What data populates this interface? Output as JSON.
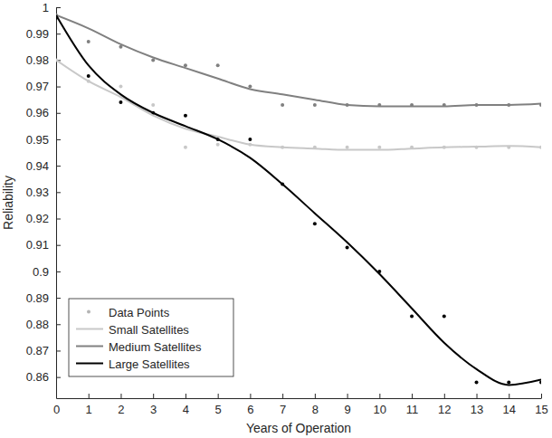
{
  "chart_data": {
    "type": "line",
    "xlabel": "Years of Operation",
    "ylabel": "Reliability",
    "x": [
      0,
      1,
      2,
      3,
      4,
      5,
      6,
      7,
      8,
      9,
      10,
      11,
      12,
      13,
      14,
      15
    ],
    "xlim": [
      0,
      15
    ],
    "xticks": [
      0,
      1,
      2,
      3,
      4,
      5,
      6,
      7,
      8,
      9,
      10,
      11,
      12,
      13,
      14,
      15
    ],
    "ylim": [
      0.852,
      1
    ],
    "yticks": [
      0.86,
      0.87,
      0.88,
      0.89,
      0.9,
      0.91,
      0.92,
      0.93,
      0.94,
      0.95,
      0.96,
      0.97,
      0.98,
      0.99,
      1
    ],
    "grid": false,
    "legend": "lower left",
    "series": [
      {
        "name": "Data Points",
        "type": "scatter",
        "marker": "circle",
        "color": "#b4b4b4",
        "x": [
          0,
          1,
          2,
          3,
          4,
          5,
          6,
          7,
          8,
          9,
          10,
          11,
          12,
          13,
          14,
          15,
          0,
          1,
          2,
          3,
          4,
          5,
          6,
          7,
          8,
          9,
          10,
          11,
          12,
          13,
          14,
          15,
          0,
          1,
          2,
          3,
          4,
          5,
          6,
          7,
          8,
          9,
          10,
          11,
          12,
          13,
          14,
          15
        ],
        "values": [
          0.98,
          0.972,
          0.97,
          0.963,
          0.947,
          0.948,
          0.948,
          0.947,
          0.947,
          0.947,
          0.947,
          0.947,
          0.947,
          0.947,
          0.947,
          0.947,
          0.997,
          0.987,
          0.985,
          0.98,
          0.978,
          0.978,
          0.97,
          0.963,
          0.963,
          0.963,
          0.963,
          0.963,
          0.963,
          0.963,
          0.963,
          0.963,
          0.996,
          0.974,
          0.964,
          0.96,
          0.959,
          0.95,
          0.95,
          0.933,
          0.918,
          0.909,
          0.9,
          0.883,
          0.883,
          0.858,
          0.858,
          0.858
        ],
        "colors": [
          "#c8c8c8",
          "#c8c8c8",
          "#c8c8c8",
          "#c8c8c8",
          "#c8c8c8",
          "#c8c8c8",
          "#c8c8c8",
          "#c8c8c8",
          "#c8c8c8",
          "#c8c8c8",
          "#c8c8c8",
          "#c8c8c8",
          "#c8c8c8",
          "#c8c8c8",
          "#c8c8c8",
          "#c8c8c8",
          "#808080",
          "#808080",
          "#808080",
          "#808080",
          "#808080",
          "#808080",
          "#808080",
          "#808080",
          "#808080",
          "#808080",
          "#808080",
          "#808080",
          "#808080",
          "#808080",
          "#808080",
          "#808080",
          "#000000",
          "#000000",
          "#000000",
          "#000000",
          "#000000",
          "#000000",
          "#000000",
          "#000000",
          "#000000",
          "#000000",
          "#000000",
          "#000000",
          "#000000",
          "#000000",
          "#000000",
          "#000000"
        ]
      },
      {
        "name": "Small Satellites",
        "type": "line",
        "line_style": "solid",
        "color": "#c8c8c8",
        "values": [
          0.98,
          0.972,
          0.966,
          0.959,
          0.954,
          0.951,
          0.948,
          0.947,
          0.9465,
          0.946,
          0.946,
          0.9465,
          0.947,
          0.9472,
          0.9475,
          0.947
        ]
      },
      {
        "name": "Medium Satellites",
        "type": "line",
        "line_style": "solid",
        "color": "#808080",
        "values": [
          0.997,
          0.992,
          0.986,
          0.981,
          0.977,
          0.973,
          0.969,
          0.967,
          0.965,
          0.963,
          0.9625,
          0.9625,
          0.9625,
          0.963,
          0.963,
          0.9635
        ]
      },
      {
        "name": "Large Satellites",
        "type": "line",
        "line_style": "solid",
        "color": "#000000",
        "values": [
          0.997,
          0.978,
          0.967,
          0.96,
          0.955,
          0.95,
          0.943,
          0.933,
          0.922,
          0.911,
          0.899,
          0.886,
          0.873,
          0.863,
          0.857,
          0.859
        ]
      }
    ]
  }
}
